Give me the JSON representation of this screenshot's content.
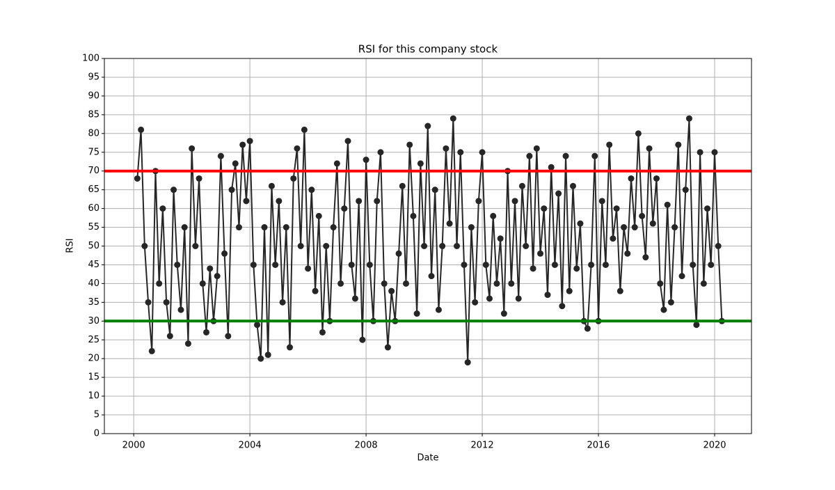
{
  "chart_data": {
    "type": "line",
    "title": "RSI for this company stock",
    "x_label": "Date",
    "y_label": "RSI",
    "x": [
      2000.125,
      2000.25,
      2000.375,
      2000.5,
      2000.625,
      2000.75,
      2000.875,
      2001,
      2001.125,
      2001.25,
      2001.375,
      2001.5,
      2001.625,
      2001.75,
      2001.875,
      2002,
      2002.125,
      2002.25,
      2002.375,
      2002.5,
      2002.625,
      2002.75,
      2002.875,
      2003,
      2003.125,
      2003.25,
      2003.375,
      2003.5,
      2003.625,
      2003.75,
      2003.875,
      2004,
      2004.125,
      2004.25,
      2004.375,
      2004.5,
      2004.625,
      2004.75,
      2004.875,
      2005,
      2005.125,
      2005.25,
      2005.375,
      2005.5,
      2005.625,
      2005.75,
      2005.875,
      2006,
      2006.125,
      2006.25,
      2006.375,
      2006.5,
      2006.625,
      2006.75,
      2006.875,
      2007,
      2007.125,
      2007.25,
      2007.375,
      2007.5,
      2007.625,
      2007.75,
      2007.875,
      2008,
      2008.125,
      2008.25,
      2008.375,
      2008.5,
      2008.625,
      2008.75,
      2008.875,
      2009,
      2009.125,
      2009.25,
      2009.375,
      2009.5,
      2009.625,
      2009.75,
      2009.875,
      2010,
      2010.125,
      2010.25,
      2010.375,
      2010.5,
      2010.625,
      2010.75,
      2010.875,
      2011,
      2011.125,
      2011.25,
      2011.375,
      2011.5,
      2011.625,
      2011.75,
      2011.875,
      2012,
      2012.125,
      2012.25,
      2012.375,
      2012.5,
      2012.625,
      2012.75,
      2012.875,
      2013,
      2013.125,
      2013.25,
      2013.375,
      2013.5,
      2013.625,
      2013.75,
      2013.875,
      2014,
      2014.125,
      2014.25,
      2014.375,
      2014.5,
      2014.625,
      2014.75,
      2014.875,
      2015,
      2015.125,
      2015.25,
      2015.375,
      2015.5,
      2015.625,
      2015.75,
      2015.875,
      2016,
      2016.125,
      2016.25,
      2016.375,
      2016.5,
      2016.625,
      2016.75,
      2016.875,
      2017,
      2017.125,
      2017.25,
      2017.375,
      2017.5,
      2017.625,
      2017.75,
      2017.875,
      2018,
      2018.125,
      2018.25,
      2018.375,
      2018.5,
      2018.625,
      2018.75,
      2018.875,
      2019,
      2019.125,
      2019.25,
      2019.375,
      2019.5,
      2019.625,
      2019.75,
      2019.875,
      2020,
      2020.125,
      2020.25
    ],
    "series": [
      {
        "color": "#262626",
        "values": [
          68,
          81,
          50,
          35,
          22,
          70,
          40,
          60,
          35,
          26,
          65,
          45,
          33,
          55,
          24,
          76,
          50,
          68,
          40,
          27,
          44,
          30,
          42,
          74,
          48,
          26,
          65,
          72,
          55,
          77,
          62,
          78,
          45,
          29,
          20,
          55,
          21,
          66,
          45,
          62,
          35,
          55,
          23,
          68,
          76,
          50,
          81,
          44,
          65,
          38,
          58,
          27,
          50,
          30,
          55,
          72,
          40,
          60,
          78,
          45,
          36,
          62,
          25,
          73,
          45,
          30,
          62,
          75,
          40,
          23,
          38,
          30,
          48,
          66,
          40,
          77,
          58,
          32,
          72,
          50,
          82,
          42,
          65,
          33,
          50,
          76,
          56,
          84,
          50,
          75,
          45,
          19,
          55,
          35,
          62,
          75,
          45,
          36,
          58,
          40,
          52,
          32,
          70,
          40,
          62,
          36,
          66,
          50,
          74,
          44,
          76,
          48,
          60,
          37,
          71,
          45,
          64,
          34,
          74,
          38,
          66,
          44,
          56,
          30,
          28,
          45,
          74,
          30,
          62,
          45,
          77,
          52,
          60,
          38,
          55,
          48,
          68,
          55,
          80,
          58,
          47,
          76,
          56,
          68,
          40,
          33,
          61,
          35,
          55,
          77,
          42,
          65,
          84,
          45,
          29,
          75,
          40,
          60,
          45,
          75,
          50,
          30
        ]
      }
    ],
    "xlim": [
      1998.99,
      2021.27
    ],
    "ylim": [
      0,
      100
    ],
    "xticks": [
      2000,
      2004,
      2008,
      2012,
      2016,
      2020
    ],
    "yticks": [
      0,
      5,
      10,
      15,
      20,
      25,
      30,
      35,
      40,
      45,
      50,
      55,
      60,
      65,
      70,
      75,
      80,
      85,
      90,
      95,
      100
    ],
    "grid": true,
    "hlines": [
      {
        "value": 70,
        "color": "#ff0000"
      },
      {
        "value": 30,
        "color": "#008000"
      }
    ]
  }
}
